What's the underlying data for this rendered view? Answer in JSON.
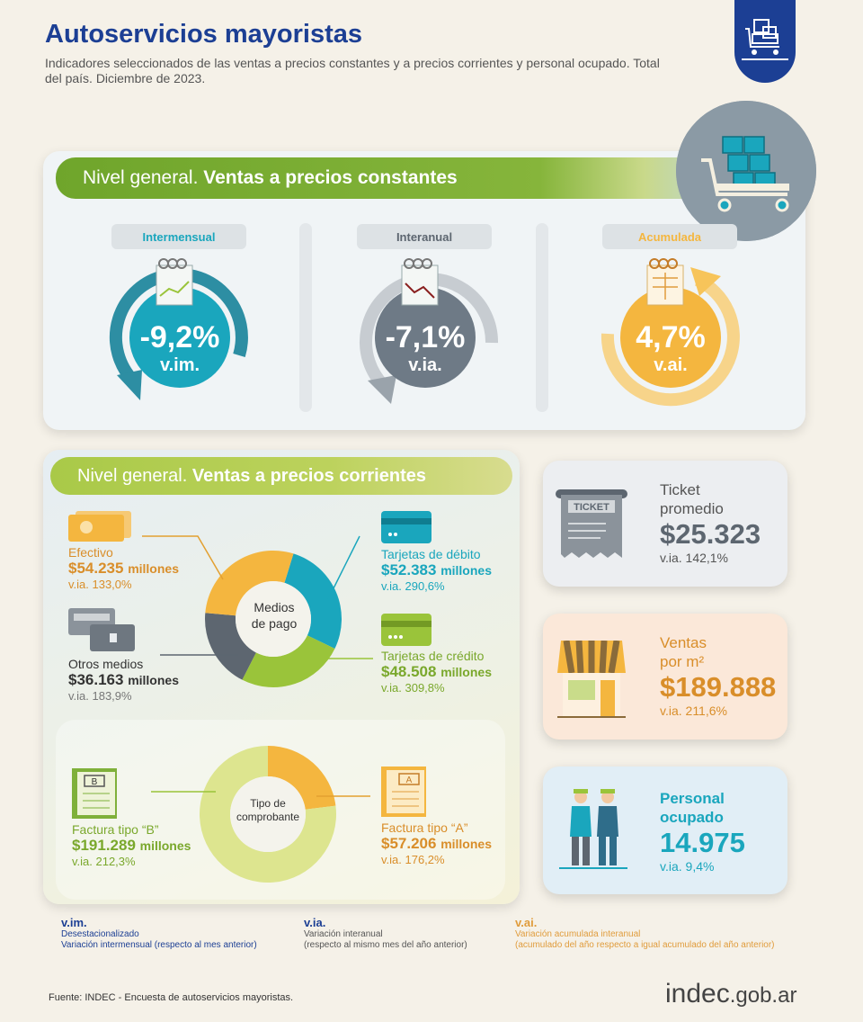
{
  "header": {
    "title": "Autoservicios mayoristas",
    "subtitle": "Indicadores seleccionados de las ventas a precios constantes y a precios corrientes y personal ocupado. Total del país. Diciembre de 2023."
  },
  "constantes": {
    "banner_regular": "Nivel general.",
    "banner_bold": "Ventas a precios constantes",
    "gauges": [
      {
        "tab": "Intermensual",
        "pct": "-9,2%",
        "lbl": "v.im.",
        "color": "#1aa6bd"
      },
      {
        "tab": "Interanual",
        "pct": "-7,1%",
        "lbl": "v.ia.",
        "color": "#6e7a86"
      },
      {
        "tab": "Acumulada",
        "pct": "4,7%",
        "lbl": "v.ai.",
        "color": "#f4b63f"
      }
    ]
  },
  "corrientes": {
    "banner_regular": "Nivel general.",
    "banner_bold": "Ventas a precios corrientes",
    "medios": {
      "center": [
        "Medios",
        "de pago"
      ],
      "efectivo": {
        "label": "Efectivo",
        "value": "$54.235",
        "unit": "millones",
        "var": "v.ia. 133,0%"
      },
      "otros": {
        "label": "Otros medios",
        "value": "$36.163",
        "unit": "millones",
        "var": "v.ia. 183,9%"
      },
      "debito": {
        "label": "Tarjetas de débito",
        "value": "$52.383",
        "unit": "millones",
        "var": "v.ia. 290,6%"
      },
      "credito": {
        "label": "Tarjetas de crédito",
        "value": "$48.508",
        "unit": "millones",
        "var": "v.ia. 309,8%"
      }
    },
    "comprobante": {
      "center": [
        "Tipo de",
        "comprobante"
      ],
      "b": {
        "label": "Factura tipo “B”",
        "value": "$191.289",
        "unit": "millones",
        "var": "v.ia. 212,3%",
        "letter": "B"
      },
      "a": {
        "label": "Factura tipo “A”",
        "value": "$57.206",
        "unit": "millones",
        "var": "v.ia. 176,2%",
        "letter": "A"
      }
    }
  },
  "cards": {
    "ticket": {
      "title1": "Ticket",
      "title2": "promedio",
      "value": "$25.323",
      "var": "v.ia. 142,1%",
      "icon_text": "TICKET"
    },
    "ventas": {
      "title1": "Ventas",
      "title2": "por m²",
      "value": "$189.888",
      "var": "v.ia. 211,6%"
    },
    "personal": {
      "title1": "Personal",
      "title2": "ocupado",
      "value": "14.975",
      "var": "v.ia. 9,4%"
    }
  },
  "legend": [
    {
      "head": "v.im.",
      "l1": "Desestacionalizado",
      "l2": "Variación intermensual (respecto al mes anterior)"
    },
    {
      "head": "v.ia.",
      "l1": "Variación interanual",
      "l2": "(respecto al mismo mes del año anterior)"
    },
    {
      "head": "v.ai.",
      "l1": "Variación acumulada interanual",
      "l2": "(acumulado del año respecto a igual acumulado del año anterior)"
    }
  ],
  "footer": {
    "source": "Fuente: INDEC - Encuesta de autoservicios mayoristas.",
    "logo_a": "indec",
    "logo_b": ".gob.ar"
  },
  "chart_data": [
    {
      "type": "pie",
      "title": "Medios de pago",
      "categories": [
        "Efectivo",
        "Tarjetas de débito",
        "Tarjetas de crédito",
        "Otros medios"
      ],
      "values": [
        54235,
        52383,
        48508,
        36163
      ]
    },
    {
      "type": "pie",
      "title": "Tipo de comprobante",
      "categories": [
        "Factura tipo “A”",
        "Factura tipo “B”"
      ],
      "values": [
        57206,
        191289
      ]
    }
  ],
  "colors": {
    "efectivo": "#f4b63f",
    "debito": "#1aa6bd",
    "credito": "#9ac43a",
    "otros": "#5d6670",
    "factB": "#dde58f",
    "factA": "#f4b63f"
  }
}
